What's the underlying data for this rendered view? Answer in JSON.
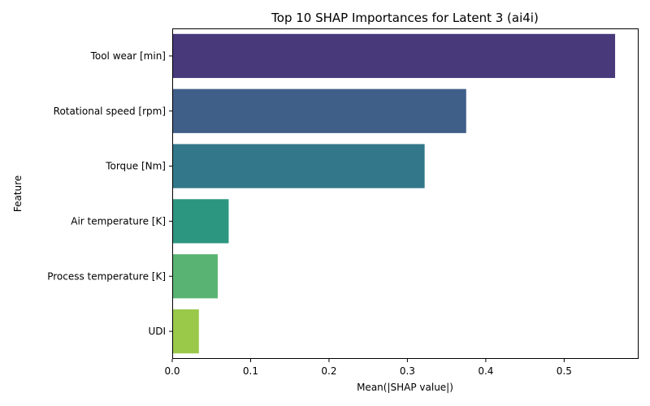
{
  "chart_data": {
    "type": "bar",
    "orientation": "horizontal",
    "title": "Top 10 SHAP Importances for Latent 3 (ai4i)",
    "xlabel": "Mean(|SHAP value|)",
    "ylabel": "Feature",
    "categories": [
      "Tool wear [min]",
      "Rotational speed [rpm]",
      "Torque [Nm]",
      "Air temperature [K]",
      "Process temperature [K]",
      "UDI"
    ],
    "values": [
      0.565,
      0.375,
      0.322,
      0.072,
      0.058,
      0.034
    ],
    "colors": [
      "#48397b",
      "#3f5f89",
      "#33788a",
      "#2d9681",
      "#59b372",
      "#9ac94a"
    ],
    "xlim": [
      0,
      0.595
    ],
    "xticks": [
      0.0,
      0.1,
      0.2,
      0.3,
      0.4,
      0.5
    ],
    "xtick_labels": [
      "0.0",
      "0.1",
      "0.2",
      "0.3",
      "0.4",
      "0.5"
    ],
    "grid": false,
    "legend": "none"
  }
}
